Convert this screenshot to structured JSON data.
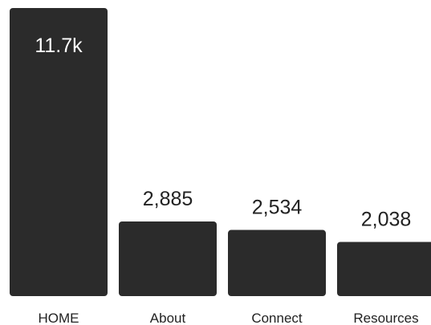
{
  "chart_data": {
    "type": "bar",
    "title": "",
    "xlabel": "",
    "ylabel": "",
    "categories": [
      "HOME",
      "About",
      "Connect",
      "Resources"
    ],
    "values": [
      11700,
      2885,
      2534,
      2038
    ],
    "value_labels": [
      "11.7k",
      "2,885",
      "2,534",
      "2,038"
    ],
    "colors": {
      "bar": "#2b2b2b",
      "label_inside": "#ffffff",
      "label_outside": "#222222"
    },
    "grid": false,
    "legend": "none"
  }
}
